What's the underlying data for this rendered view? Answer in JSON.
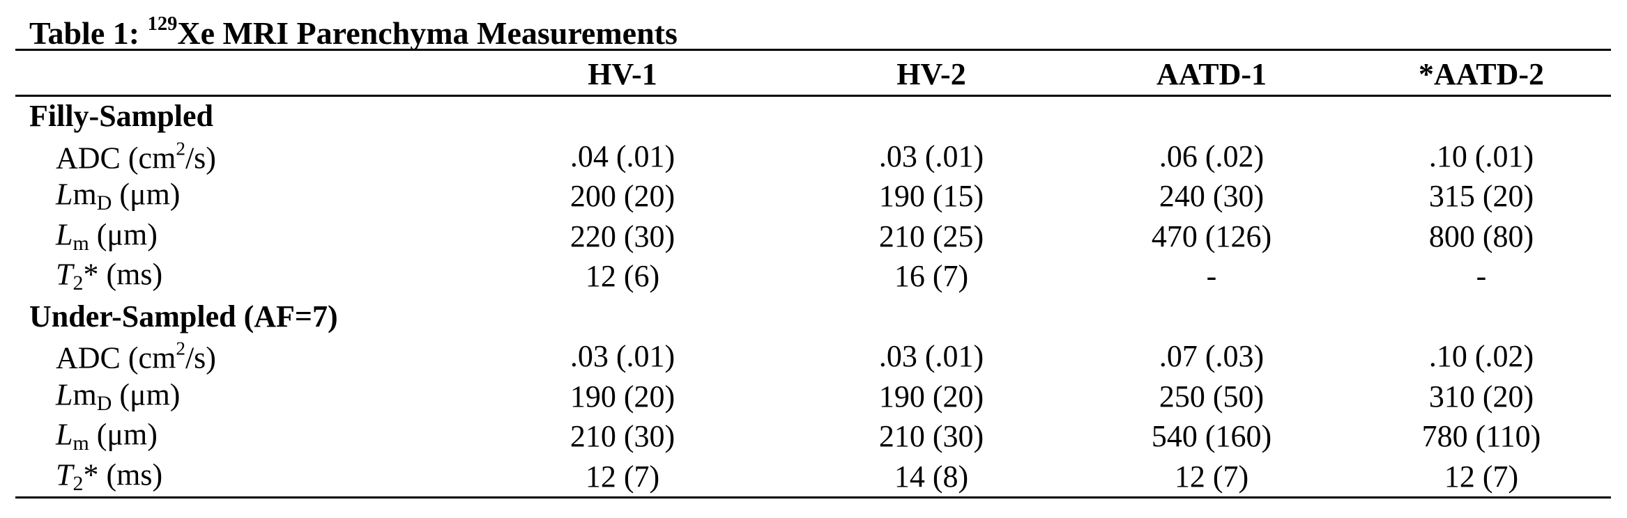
{
  "table": {
    "title": [
      {
        "text": "Table 1: "
      },
      {
        "text": "129",
        "style": "sup"
      },
      {
        "text": "Xe MRI Parenchyma Measurements"
      }
    ],
    "columns": [
      "HV-1",
      "HV-2",
      "AATD-1",
      "*AATD-2"
    ],
    "sections": [
      {
        "title": "Filly-Sampled",
        "rows": [
          {
            "label": [
              {
                "text": "ADC (cm"
              },
              {
                "text": "2",
                "style": "sup"
              },
              {
                "text": "/s)"
              }
            ],
            "cells": [
              ".04 (.01)",
              ".03 (.01)",
              ".06 (.02)",
              ".10 (.01)"
            ]
          },
          {
            "label": [
              {
                "text": "L",
                "style": "italic"
              },
              {
                "text": "m"
              },
              {
                "text": "D",
                "style": "sub"
              },
              {
                "text": " (μm)"
              }
            ],
            "cells": [
              "200 (20)",
              "190 (15)",
              "240 (30)",
              "315 (20)"
            ]
          },
          {
            "label": [
              {
                "text": "L",
                "style": "italic"
              },
              {
                "text": "m",
                "style": "sub"
              },
              {
                "text": " (μm)"
              }
            ],
            "cells": [
              "220 (30)",
              "210 (25)",
              "470 (126)",
              "800 (80)"
            ]
          },
          {
            "label": [
              {
                "text": "T",
                "style": "italic"
              },
              {
                "text": "2",
                "style": "sub"
              },
              {
                "text": "* (ms)"
              }
            ],
            "cells": [
              "12 (6)",
              "16 (7)",
              "-",
              "-"
            ]
          }
        ]
      },
      {
        "title": "Under-Sampled (AF=7)",
        "rows": [
          {
            "label": [
              {
                "text": "ADC (cm"
              },
              {
                "text": "2",
                "style": "sup"
              },
              {
                "text": "/s)"
              }
            ],
            "cells": [
              ".03 (.01)",
              ".03 (.01)",
              ".07 (.03)",
              ".10 (.02)"
            ]
          },
          {
            "label": [
              {
                "text": "L",
                "style": "italic"
              },
              {
                "text": "m"
              },
              {
                "text": "D",
                "style": "sub"
              },
              {
                "text": " (μm)"
              }
            ],
            "cells": [
              "190 (20)",
              "190 (20)",
              "250 (50)",
              "310 (20)"
            ]
          },
          {
            "label": [
              {
                "text": "L",
                "style": "italic"
              },
              {
                "text": "m",
                "style": "sub"
              },
              {
                "text": " (μm)"
              }
            ],
            "cells": [
              "210 (30)",
              "210 (30)",
              "540 (160)",
              "780 (110)"
            ]
          },
          {
            "label": [
              {
                "text": "T",
                "style": "italic"
              },
              {
                "text": "2",
                "style": "sub"
              },
              {
                "text": "* (ms)"
              }
            ],
            "cells": [
              "12 (7)",
              "14 (8)",
              "12 (7)",
              "12 (7)"
            ]
          }
        ]
      }
    ]
  }
}
